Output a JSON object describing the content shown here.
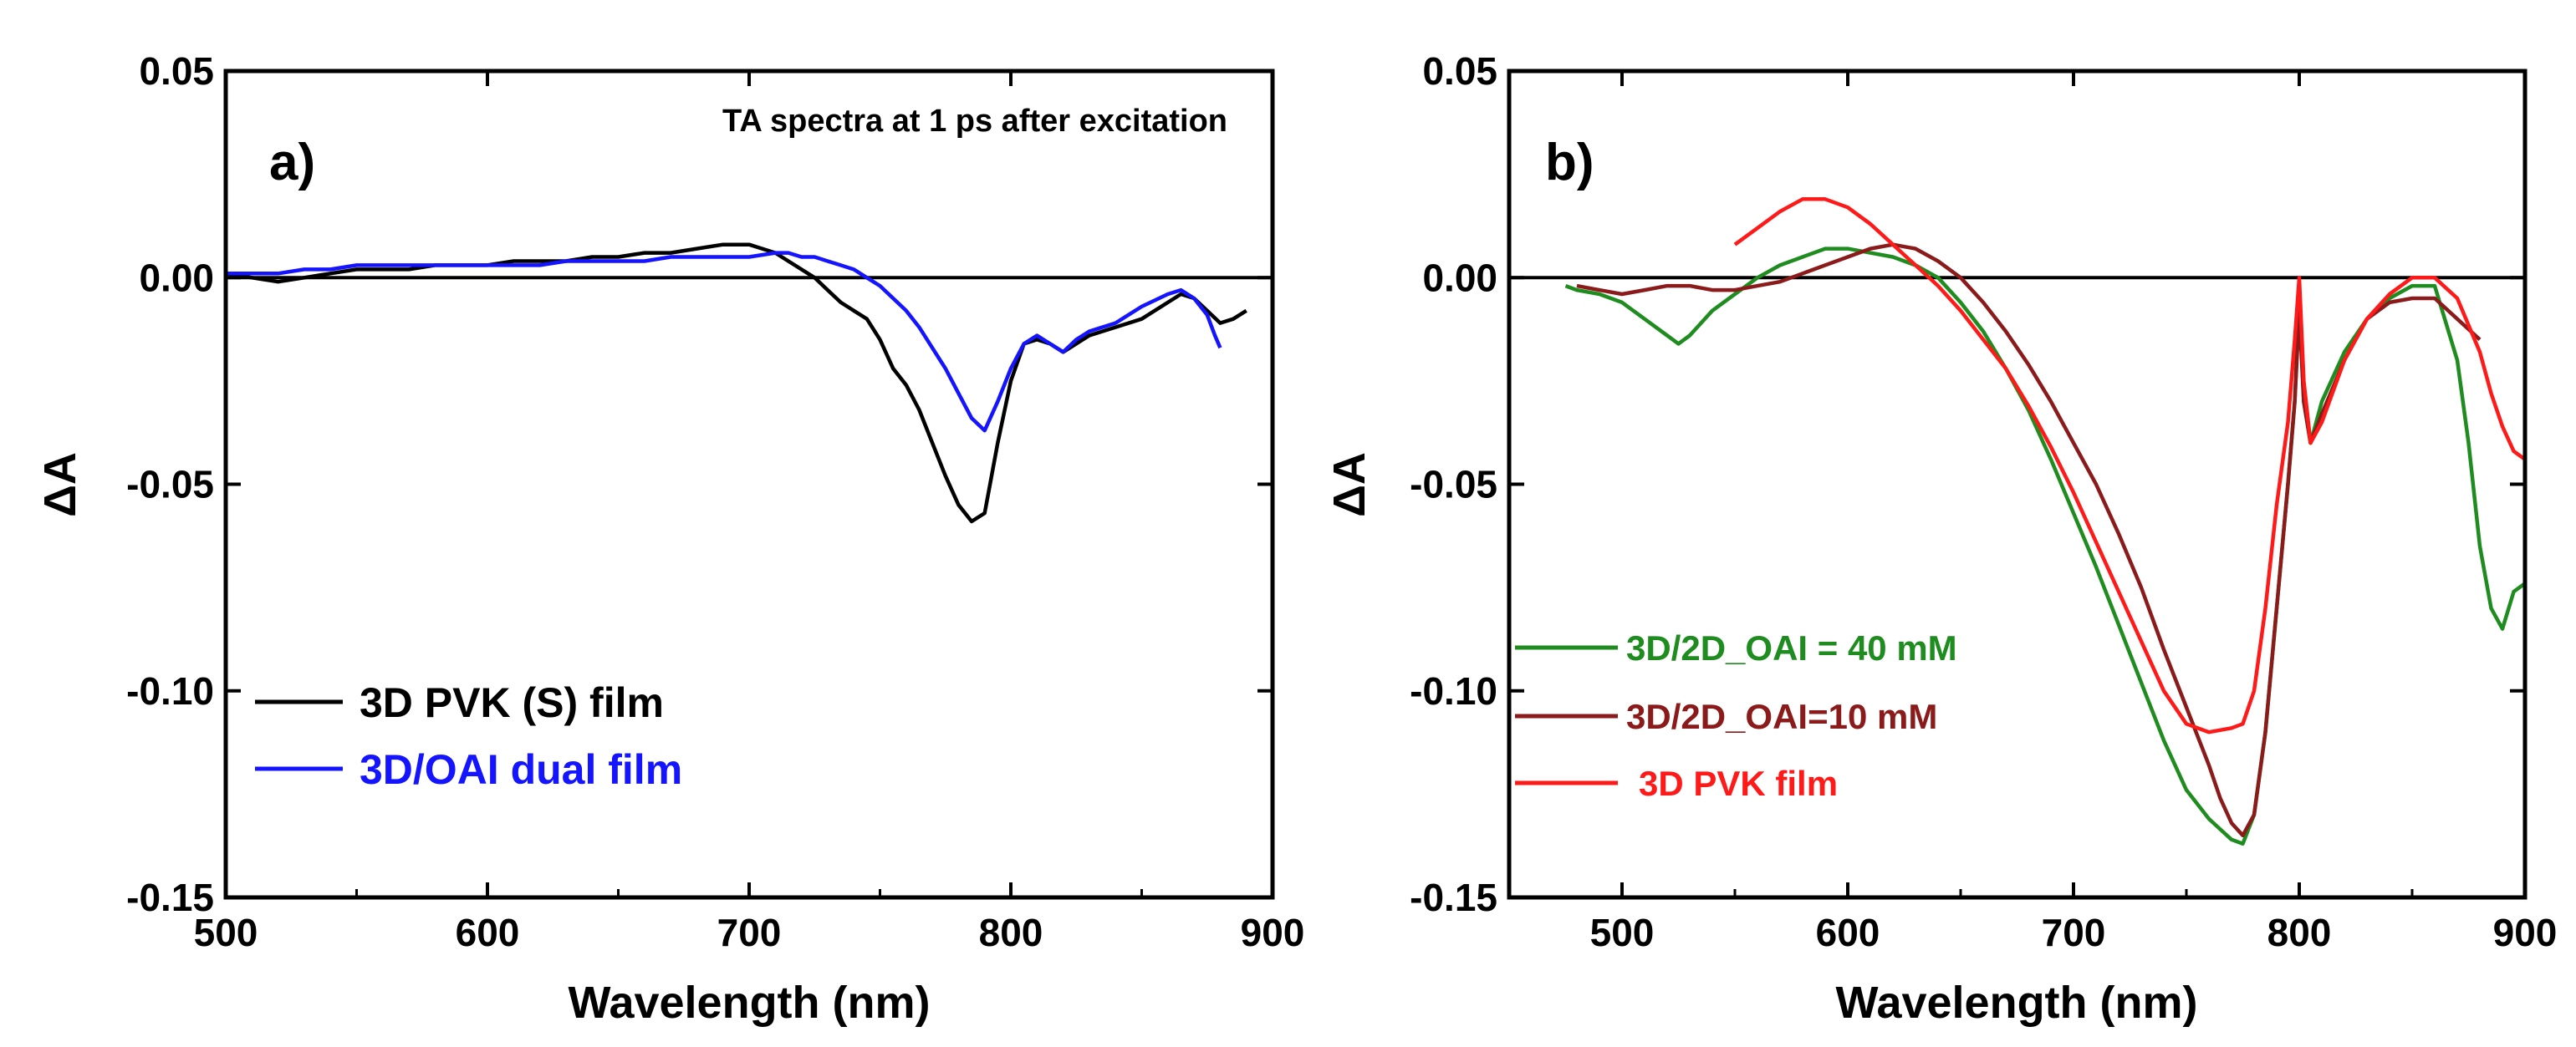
{
  "figure": {
    "title": ""
  },
  "chart_data": [
    {
      "type": "line",
      "panel_label": "a)",
      "annotation": "TA spectra at 1 ps after excitation",
      "xlabel": "Wavelength (nm)",
      "ylabel": "ΔA",
      "xlim": [
        500,
        900
      ],
      "ylim": [
        -0.15,
        0.05
      ],
      "xticks": [
        "500",
        "600",
        "700",
        "800",
        "900"
      ],
      "yticks": [
        "0.05",
        "0.00",
        "-0.05",
        "-0.10",
        "-0.15"
      ],
      "zero_line": true,
      "legend": {
        "position": "bottom-left"
      },
      "series": [
        {
          "name": "3D PVK (S) film",
          "color": "#000000",
          "x": [
            500,
            510,
            520,
            530,
            540,
            550,
            560,
            570,
            580,
            590,
            600,
            610,
            620,
            630,
            640,
            650,
            660,
            670,
            680,
            690,
            695,
            700,
            705,
            710,
            715,
            720,
            725,
            730,
            735,
            740,
            745,
            750,
            755,
            760,
            765,
            770,
            775,
            780,
            785,
            790,
            795,
            800,
            805,
            810,
            815,
            820,
            825,
            830,
            840,
            850,
            860,
            865,
            870,
            875,
            880,
            885,
            890
          ],
          "y": [
            0.001,
            0.0,
            -0.001,
            0.0,
            0.001,
            0.002,
            0.002,
            0.002,
            0.003,
            0.003,
            0.003,
            0.004,
            0.004,
            0.004,
            0.005,
            0.005,
            0.006,
            0.006,
            0.007,
            0.008,
            0.008,
            0.008,
            0.007,
            0.006,
            0.004,
            0.002,
            0.0,
            -0.003,
            -0.006,
            -0.008,
            -0.01,
            -0.015,
            -0.022,
            -0.026,
            -0.032,
            -0.04,
            -0.048,
            -0.055,
            -0.059,
            -0.057,
            -0.04,
            -0.025,
            -0.016,
            -0.015,
            -0.016,
            -0.018,
            -0.016,
            -0.014,
            -0.012,
            -0.01,
            -0.006,
            -0.004,
            -0.005,
            -0.008,
            -0.011,
            -0.01,
            -0.008
          ]
        },
        {
          "name": "3D/OAI dual film",
          "color": "#1414ff",
          "x": [
            500,
            510,
            520,
            530,
            540,
            550,
            560,
            570,
            580,
            590,
            600,
            610,
            620,
            630,
            640,
            650,
            660,
            670,
            680,
            690,
            700,
            710,
            715,
            720,
            725,
            730,
            735,
            740,
            745,
            750,
            755,
            760,
            765,
            770,
            775,
            780,
            785,
            790,
            795,
            800,
            805,
            810,
            815,
            820,
            825,
            830,
            840,
            850,
            860,
            865,
            870,
            875,
            878,
            880
          ],
          "y": [
            0.001,
            0.001,
            0.001,
            0.002,
            0.002,
            0.003,
            0.003,
            0.003,
            0.003,
            0.003,
            0.003,
            0.003,
            0.003,
            0.004,
            0.004,
            0.004,
            0.004,
            0.005,
            0.005,
            0.005,
            0.005,
            0.006,
            0.006,
            0.005,
            0.005,
            0.004,
            0.003,
            0.002,
            0.0,
            -0.002,
            -0.005,
            -0.008,
            -0.012,
            -0.017,
            -0.022,
            -0.028,
            -0.034,
            -0.037,
            -0.03,
            -0.022,
            -0.016,
            -0.014,
            -0.016,
            -0.018,
            -0.015,
            -0.013,
            -0.011,
            -0.007,
            -0.004,
            -0.003,
            -0.005,
            -0.009,
            -0.014,
            -0.017
          ]
        }
      ]
    },
    {
      "type": "line",
      "panel_label": "b)",
      "xlabel": "Wavelength (nm)",
      "ylabel": "ΔA",
      "xlim": [
        450,
        900
      ],
      "ylim": [
        -0.15,
        0.05
      ],
      "xticks": [
        "500",
        "600",
        "700",
        "800",
        "900"
      ],
      "yticks": [
        "0.05",
        "0.00",
        "-0.05",
        "-0.10",
        "-0.15"
      ],
      "zero_line": true,
      "legend": {
        "position": "bottom-left"
      },
      "series": [
        {
          "name": "3D/2D_OAI = 40 mM",
          "color": "#1e8c1e",
          "x": [
            475,
            480,
            490,
            500,
            510,
            520,
            525,
            530,
            540,
            550,
            560,
            570,
            580,
            590,
            600,
            610,
            620,
            630,
            640,
            650,
            660,
            670,
            680,
            690,
            700,
            710,
            720,
            730,
            740,
            750,
            760,
            770,
            775,
            780,
            785,
            790,
            795,
            798,
            800,
            802,
            805,
            810,
            820,
            830,
            840,
            850,
            860,
            870,
            875,
            880,
            885,
            890,
            895,
            900
          ],
          "y": [
            -0.002,
            -0.003,
            -0.004,
            -0.006,
            -0.01,
            -0.014,
            -0.016,
            -0.014,
            -0.008,
            -0.004,
            0.0,
            0.003,
            0.005,
            0.007,
            0.007,
            0.006,
            0.005,
            0.003,
            0.0,
            -0.006,
            -0.013,
            -0.022,
            -0.032,
            -0.044,
            -0.057,
            -0.07,
            -0.084,
            -0.098,
            -0.112,
            -0.124,
            -0.131,
            -0.136,
            -0.137,
            -0.13,
            -0.11,
            -0.08,
            -0.05,
            -0.03,
            -0.005,
            -0.03,
            -0.04,
            -0.03,
            -0.018,
            -0.01,
            -0.005,
            -0.002,
            -0.002,
            -0.02,
            -0.04,
            -0.065,
            -0.08,
            -0.085,
            -0.076,
            -0.074
          ]
        },
        {
          "name": "3D/2D_OAI=10 mM",
          "color": "#8b1a1a",
          "x": [
            480,
            490,
            500,
            510,
            520,
            530,
            540,
            550,
            560,
            570,
            580,
            590,
            600,
            610,
            620,
            630,
            640,
            650,
            660,
            670,
            680,
            690,
            700,
            710,
            720,
            730,
            740,
            750,
            760,
            765,
            770,
            775,
            780,
            785,
            790,
            795,
            798,
            800,
            802,
            805,
            810,
            820,
            830,
            840,
            850,
            860,
            870,
            880
          ],
          "y": [
            -0.002,
            -0.003,
            -0.004,
            -0.003,
            -0.002,
            -0.002,
            -0.003,
            -0.003,
            -0.002,
            -0.001,
            0.001,
            0.003,
            0.005,
            0.007,
            0.008,
            0.007,
            0.004,
            0.0,
            -0.006,
            -0.013,
            -0.021,
            -0.03,
            -0.04,
            -0.05,
            -0.062,
            -0.075,
            -0.09,
            -0.104,
            -0.118,
            -0.126,
            -0.132,
            -0.135,
            -0.13,
            -0.11,
            -0.08,
            -0.05,
            -0.03,
            -0.008,
            -0.03,
            -0.04,
            -0.033,
            -0.02,
            -0.01,
            -0.006,
            -0.005,
            -0.005,
            -0.01,
            -0.015
          ]
        },
        {
          "name": "3D PVK film",
          "color": "#ff1a1a",
          "x": [
            550,
            560,
            570,
            580,
            590,
            600,
            610,
            620,
            630,
            640,
            650,
            660,
            670,
            680,
            690,
            700,
            710,
            720,
            730,
            740,
            750,
            760,
            770,
            775,
            780,
            785,
            790,
            795,
            798,
            800,
            802,
            805,
            810,
            820,
            830,
            840,
            850,
            860,
            870,
            880,
            885,
            890,
            895,
            900
          ],
          "y": [
            0.008,
            0.012,
            0.016,
            0.019,
            0.019,
            0.017,
            0.013,
            0.008,
            0.003,
            -0.002,
            -0.008,
            -0.015,
            -0.022,
            -0.031,
            -0.041,
            -0.052,
            -0.064,
            -0.076,
            -0.088,
            -0.1,
            -0.108,
            -0.11,
            -0.109,
            -0.108,
            -0.1,
            -0.08,
            -0.055,
            -0.035,
            -0.015,
            0.0,
            -0.025,
            -0.04,
            -0.035,
            -0.02,
            -0.01,
            -0.004,
            0.0,
            0.0,
            -0.005,
            -0.018,
            -0.028,
            -0.036,
            -0.042,
            -0.044
          ]
        }
      ]
    }
  ]
}
